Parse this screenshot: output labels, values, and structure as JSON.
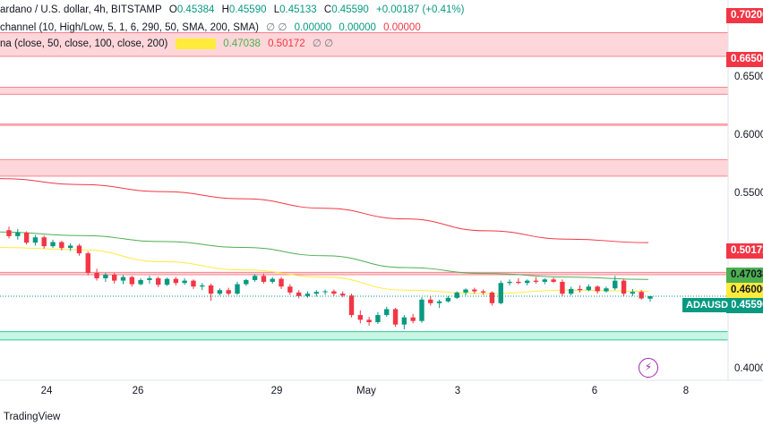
{
  "legend": {
    "symbol_line": "ardano / U.S. dollar, 4h, BITSTAMP",
    "open_label": "O",
    "open": "0.45384",
    "high_label": "H",
    "high": "0.45590",
    "low_label": "L",
    "low": "0.45133",
    "close_label": "C",
    "close": "0.45590",
    "change": "+0.00187 (+0.41%)",
    "indicator1_name": "channel (10, High/Low, 5, 1, 6, 290, 50, SMA, 200, SMA)",
    "indicator1_extra": "∅  ∅",
    "indicator1_values": [
      "0.00000",
      "0.00000",
      "0.00000"
    ],
    "indicator2_name": "na (close, 50, close, 100, close, 200)",
    "indicator2_values": [
      "0.46000",
      "0.47038",
      "0.50172"
    ],
    "indicator2_extra": "∅  ∅"
  },
  "price_axis": {
    "labels": [
      "0.65000",
      "0.60000",
      "0.55000",
      "0.40000"
    ],
    "tags": [
      {
        "text": "0.70200",
        "bg": "#f23645",
        "fg": "#ffffff"
      },
      {
        "text": "0.66500",
        "bg": "#f23645",
        "fg": "#ffffff"
      },
      {
        "text": "0.50172",
        "bg": "#f23645",
        "fg": "#ffffff"
      },
      {
        "text": "0.47038",
        "bg": "#4caf50",
        "fg": "#131722"
      },
      {
        "text": "0.46000",
        "bg": "#ffeb3b",
        "fg": "#131722"
      },
      {
        "text": "0.45590",
        "bg": "#089981",
        "fg": "#ffffff"
      }
    ]
  },
  "symbol_tag": "ADAUSD",
  "time_axis": [
    "24",
    "26",
    "29",
    "May",
    "3",
    "6",
    "8"
  ],
  "footer": "TradingView",
  "colors": {
    "up": "#089981",
    "down": "#f23645",
    "zone_red_fill": "#ffd6d9",
    "zone_red_line": "#f7848f",
    "zone_green_fill": "#c8f5e4",
    "zone_green_line": "#2ecc95",
    "ma50": "#ffeb3b",
    "ma100": "#4caf50",
    "ma200": "#f23645"
  },
  "chart_data": {
    "type": "candlestick",
    "symbol": "ADAUSD",
    "timeframe": "4h",
    "exchange": "BITSTAMP",
    "ylim": [
      0.385,
      0.7055
    ],
    "x_ticks": [
      "24",
      "26",
      "29",
      "May",
      "3",
      "6",
      "8"
    ],
    "zones": [
      {
        "type": "resistance",
        "low": 0.658,
        "high": 0.678
      },
      {
        "type": "resistance",
        "low": 0.626,
        "high": 0.632
      },
      {
        "type": "resistance",
        "low": 0.6,
        "high": 0.601
      },
      {
        "type": "resistance",
        "low": 0.557,
        "high": 0.571
      },
      {
        "type": "resistance",
        "low": 0.474,
        "high": 0.476
      },
      {
        "type": "support",
        "low": 0.419,
        "high": 0.426
      }
    ],
    "moving_averages": [
      {
        "name": "MA 50",
        "last": 0.46
      },
      {
        "name": "MA 100",
        "last": 0.47038
      },
      {
        "name": "MA 200",
        "last": 0.50172
      }
    ],
    "ma200": [
      0.555,
      0.55,
      0.544,
      0.538,
      0.53,
      0.521,
      0.511,
      0.504,
      0.501
    ],
    "ma100": [
      0.51,
      0.507,
      0.502,
      0.497,
      0.49,
      0.48,
      0.475,
      0.472,
      0.47
    ],
    "ma50": [
      0.497,
      0.495,
      0.485,
      0.478,
      0.472,
      0.461,
      0.458,
      0.461,
      0.46
    ],
    "candles": [
      [
        0.5115,
        0.5145,
        0.5045,
        0.5065
      ],
      [
        0.5065,
        0.5125,
        0.5035,
        0.5095
      ],
      [
        0.5095,
        0.5105,
        0.4995,
        0.501
      ],
      [
        0.501,
        0.5075,
        0.4985,
        0.5055
      ],
      [
        0.5055,
        0.507,
        0.496,
        0.498
      ],
      [
        0.498,
        0.5035,
        0.4965,
        0.5015
      ],
      [
        0.5015,
        0.5025,
        0.4945,
        0.4965
      ],
      [
        0.4965,
        0.5005,
        0.494,
        0.4985
      ],
      [
        0.4985,
        0.5,
        0.49,
        0.492
      ],
      [
        0.492,
        0.4935,
        0.4735,
        0.4755
      ],
      [
        0.4755,
        0.479,
        0.469,
        0.471
      ],
      [
        0.471,
        0.4755,
        0.468,
        0.474
      ],
      [
        0.474,
        0.4755,
        0.4665,
        0.469
      ],
      [
        0.469,
        0.4735,
        0.466,
        0.472
      ],
      [
        0.472,
        0.473,
        0.464,
        0.466
      ],
      [
        0.466,
        0.471,
        0.465,
        0.4695
      ],
      [
        0.4695,
        0.473,
        0.4665,
        0.471
      ],
      [
        0.471,
        0.4725,
        0.4635,
        0.4655
      ],
      [
        0.4655,
        0.4715,
        0.4645,
        0.4705
      ],
      [
        0.4705,
        0.472,
        0.465,
        0.467
      ],
      [
        0.467,
        0.471,
        0.4655,
        0.469
      ],
      [
        0.469,
        0.47,
        0.462,
        0.464
      ],
      [
        0.464,
        0.467,
        0.461,
        0.465
      ],
      [
        0.465,
        0.4665,
        0.452,
        0.458
      ],
      [
        0.458,
        0.4625,
        0.4565,
        0.461
      ],
      [
        0.461,
        0.463,
        0.4565,
        0.458
      ],
      [
        0.458,
        0.468,
        0.457,
        0.466
      ],
      [
        0.466,
        0.4705,
        0.4645,
        0.4695
      ],
      [
        0.4695,
        0.4745,
        0.468,
        0.473
      ],
      [
        0.473,
        0.475,
        0.4665,
        0.468
      ],
      [
        0.468,
        0.472,
        0.4665,
        0.4705
      ],
      [
        0.4705,
        0.472,
        0.462,
        0.464
      ],
      [
        0.464,
        0.466,
        0.457,
        0.459
      ],
      [
        0.459,
        0.461,
        0.454,
        0.456
      ],
      [
        0.456,
        0.46,
        0.4545,
        0.458
      ],
      [
        0.458,
        0.461,
        0.4555,
        0.4595
      ],
      [
        0.4595,
        0.4615,
        0.457,
        0.46
      ],
      [
        0.46,
        0.4615,
        0.456,
        0.458
      ],
      [
        0.458,
        0.46,
        0.455,
        0.4565
      ],
      [
        0.4565,
        0.458,
        0.438,
        0.44
      ],
      [
        0.44,
        0.444,
        0.433,
        0.436
      ],
      [
        0.436,
        0.4385,
        0.431,
        0.434
      ],
      [
        0.434,
        0.4425,
        0.4325,
        0.44
      ],
      [
        0.44,
        0.447,
        0.4385,
        0.445
      ],
      [
        0.445,
        0.446,
        0.43,
        0.432
      ],
      [
        0.432,
        0.44,
        0.428,
        0.438
      ],
      [
        0.438,
        0.441,
        0.433,
        0.435
      ],
      [
        0.435,
        0.455,
        0.4335,
        0.453
      ],
      [
        0.453,
        0.456,
        0.448,
        0.45
      ],
      [
        0.45,
        0.453,
        0.446,
        0.4515
      ],
      [
        0.4515,
        0.456,
        0.4505,
        0.4545
      ],
      [
        0.4545,
        0.46,
        0.4535,
        0.459
      ],
      [
        0.459,
        0.4625,
        0.4565,
        0.4615
      ],
      [
        0.4615,
        0.463,
        0.458,
        0.46
      ],
      [
        0.46,
        0.4615,
        0.457,
        0.459
      ],
      [
        0.459,
        0.46,
        0.448,
        0.45
      ],
      [
        0.45,
        0.469,
        0.449,
        0.467
      ],
      [
        0.467,
        0.47,
        0.465,
        0.468
      ],
      [
        0.468,
        0.471,
        0.466,
        0.467
      ],
      [
        0.467,
        0.47,
        0.465,
        0.469
      ],
      [
        0.469,
        0.472,
        0.4665,
        0.468
      ],
      [
        0.468,
        0.471,
        0.466,
        0.47
      ],
      [
        0.47,
        0.4715,
        0.467,
        0.468
      ],
      [
        0.468,
        0.47,
        0.456,
        0.458
      ],
      [
        0.458,
        0.464,
        0.4565,
        0.462
      ],
      [
        0.462,
        0.465,
        0.459,
        0.461
      ],
      [
        0.461,
        0.466,
        0.46,
        0.464
      ],
      [
        0.464,
        0.465,
        0.458,
        0.46
      ],
      [
        0.46,
        0.464,
        0.459,
        0.4625
      ],
      [
        0.4625,
        0.473,
        0.461,
        0.469
      ],
      [
        0.469,
        0.47,
        0.456,
        0.458
      ],
      [
        0.458,
        0.462,
        0.456,
        0.4595
      ],
      [
        0.4595,
        0.461,
        0.453,
        0.454
      ],
      [
        0.4538,
        0.4559,
        0.4513,
        0.4559
      ]
    ]
  }
}
